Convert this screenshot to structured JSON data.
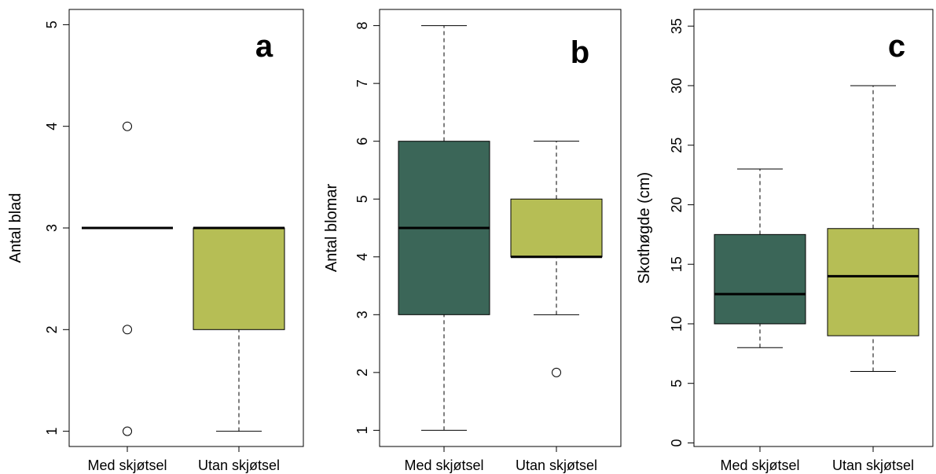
{
  "colors": {
    "med": "#3b6658",
    "utan": "#b6be55",
    "stroke": "#000000"
  },
  "chart_data": [
    {
      "type": "boxplot",
      "panel_label": "a",
      "ylabel": "Antal blad",
      "ylim": [
        0.85,
        5.15
      ],
      "yticks": [
        1,
        2,
        3,
        4,
        5
      ],
      "categories": [
        "Med skjøtsel",
        "Utan skjøtsel"
      ],
      "boxes": [
        {
          "category": "Med skjøtsel",
          "whisker_low": 3,
          "q1": 3,
          "median": 3,
          "q3": 3,
          "whisker_high": 3,
          "outliers": [
            1,
            2,
            4
          ],
          "color": "med"
        },
        {
          "category": "Utan skjøtsel",
          "whisker_low": 1,
          "q1": 2,
          "median": 3,
          "q3": 3,
          "whisker_high": 3,
          "outliers": [],
          "color": "utan"
        }
      ]
    },
    {
      "type": "boxplot",
      "panel_label": "b",
      "ylabel": "Antal blomar",
      "ylim": [
        0.72,
        8.28
      ],
      "yticks": [
        1,
        2,
        3,
        4,
        5,
        6,
        7,
        8
      ],
      "categories": [
        "Med skjøtsel",
        "Utan skjøtsel"
      ],
      "boxes": [
        {
          "category": "Med skjøtsel",
          "whisker_low": 1,
          "q1": 3,
          "median": 4.5,
          "q3": 6,
          "whisker_high": 8,
          "outliers": [],
          "color": "med"
        },
        {
          "category": "Utan skjøtsel",
          "whisker_low": 3,
          "q1": 4,
          "median": 4,
          "q3": 5,
          "whisker_high": 6,
          "outliers": [
            2
          ],
          "color": "utan"
        }
      ]
    },
    {
      "type": "boxplot",
      "panel_label": "c",
      "ylabel": "Skothøgde (cm)",
      "ylim": [
        -0.3,
        36.4
      ],
      "yticks": [
        0,
        5,
        10,
        15,
        20,
        25,
        30,
        35
      ],
      "categories": [
        "Med skjøtsel",
        "Utan skjøtsel"
      ],
      "boxes": [
        {
          "category": "Med skjøtsel",
          "whisker_low": 8,
          "q1": 10,
          "median": 12.5,
          "q3": 17.5,
          "whisker_high": 23,
          "outliers": [],
          "color": "med"
        },
        {
          "category": "Utan skjøtsel",
          "whisker_low": 6,
          "q1": 9,
          "median": 14,
          "q3": 18,
          "whisker_high": 30,
          "outliers": [],
          "color": "utan"
        }
      ]
    }
  ]
}
